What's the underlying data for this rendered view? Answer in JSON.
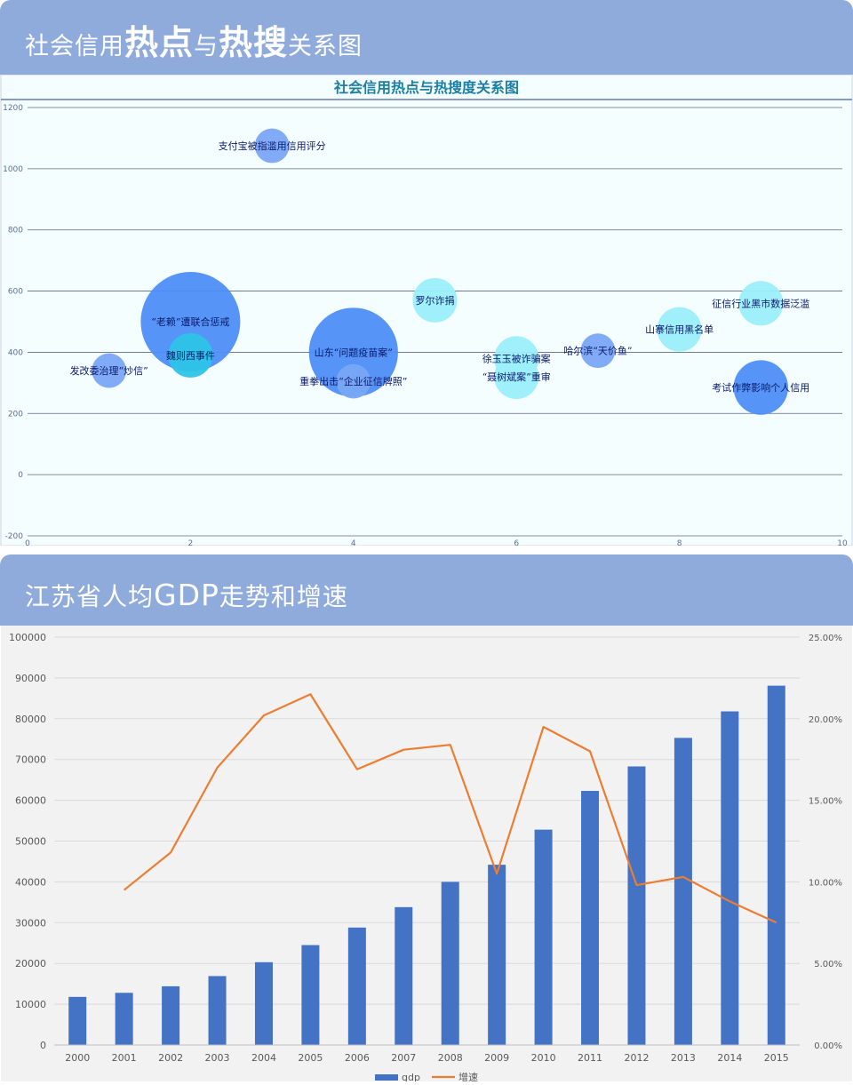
{
  "headers": {
    "panel1": {
      "pre": "社会信用",
      "big1": "热点",
      "mid": "与",
      "big2": "热搜",
      "post": "关系图"
    },
    "panel2": {
      "pre": "江苏省人均",
      "big": "GDP",
      "post": "走势和增速"
    }
  },
  "chart_data": [
    {
      "type": "bubble",
      "title": "社会信用热点与热搜度关系图",
      "xlim": [
        0,
        10
      ],
      "ylim": [
        -200,
        1200
      ],
      "xticks": [
        "0",
        "2",
        "4",
        "6",
        "8",
        "10"
      ],
      "yticks": [
        "-200",
        "0",
        "200",
        "400",
        "600",
        "800",
        "1000",
        "1200"
      ],
      "grid": true,
      "points": [
        {
          "label": "发改委治理“炒信”",
          "x": 1,
          "y": 340,
          "size": 12,
          "color": "#7aa6f7"
        },
        {
          "label": "“老赖”遭联合惩戒",
          "x": 2,
          "y": 500,
          "size": 100,
          "color": "#4d8ef7"
        },
        {
          "label": "魏则西事件",
          "x": 2,
          "y": 390,
          "size": 20,
          "color": "#2ec3e8"
        },
        {
          "label": "支付宝被指滥用信用评分",
          "x": 3,
          "y": 1075,
          "size": 12,
          "color": "#7aa6f7"
        },
        {
          "label": "山东“问题疫苗案”",
          "x": 4,
          "y": 400,
          "size": 80,
          "color": "#4d8ef7"
        },
        {
          "label": "重拳出击“企业征信牌照”",
          "x": 4,
          "y": 305,
          "size": 12,
          "color": "#7aa6f7"
        },
        {
          "label": "罗尔诈捐",
          "x": 5,
          "y": 570,
          "size": 20,
          "color": "#9beffb"
        },
        {
          "label": "徐玉玉被诈骗案",
          "x": 6,
          "y": 380,
          "size": 20,
          "color": "#9beffb"
        },
        {
          "label": "“聂树斌案”重审",
          "x": 6,
          "y": 320,
          "size": 20,
          "color": "#9beffb"
        },
        {
          "label": "哈尔滨“天价鱼”",
          "x": 7,
          "y": 405,
          "size": 12,
          "color": "#7aa6f7"
        },
        {
          "label": "山寨信用黑名单",
          "x": 8,
          "y": 475,
          "size": 20,
          "color": "#9beffb"
        },
        {
          "label": "征信行业黑市数据泛滥",
          "x": 9,
          "y": 560,
          "size": 20,
          "color": "#9beffb"
        },
        {
          "label": "考试作弊影响个人信用",
          "x": 9,
          "y": 285,
          "size": 30,
          "color": "#4d8ef7"
        }
      ]
    },
    {
      "type": "bar+line",
      "categories": [
        "2000",
        "2001",
        "2002",
        "2003",
        "2004",
        "2005",
        "2006",
        "2007",
        "2008",
        "2009",
        "2010",
        "2011",
        "2012",
        "2013",
        "2014",
        "2015"
      ],
      "ylim": [
        0,
        100000
      ],
      "yticks": [
        "0",
        "10000",
        "20000",
        "30000",
        "40000",
        "50000",
        "60000",
        "70000",
        "80000",
        "90000",
        "100000"
      ],
      "y2lim": [
        0,
        25
      ],
      "y2ticks": [
        "0.00%",
        "5.00%",
        "10.00%",
        "15.00%",
        "20.00%",
        "25.00%"
      ],
      "grid": true,
      "legend": "bottom",
      "series": [
        {
          "name": "gdp",
          "type": "bar",
          "color": "#4472c4",
          "values": [
            11800,
            12800,
            14400,
            16900,
            20300,
            24500,
            28800,
            33800,
            40000,
            44200,
            52800,
            62300,
            68300,
            75300,
            81800,
            88100
          ]
        },
        {
          "name": "增速",
          "type": "line",
          "color": "#ed7d31",
          "values": [
            null,
            9.5,
            11.8,
            17.0,
            20.2,
            21.5,
            16.9,
            18.1,
            18.4,
            10.5,
            19.5,
            18.0,
            9.8,
            10.3,
            8.8,
            7.5
          ]
        }
      ]
    }
  ]
}
